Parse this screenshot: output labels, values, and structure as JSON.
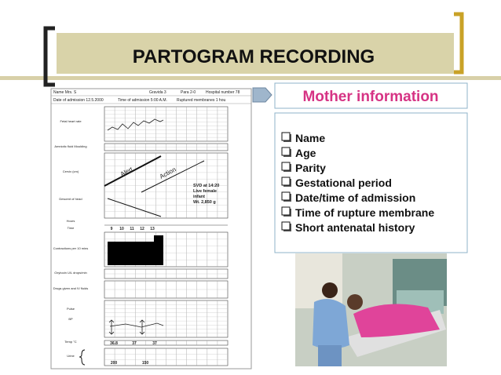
{
  "title": "PARTOGRAM RECORDING",
  "partogram": {
    "name": "Name Mrs. S",
    "gravida": "Gravida 3",
    "para": "Para 2-0",
    "hospital_number": "Hospital number 78",
    "date_of_admission": "Date of admission 12.5.2000",
    "time_of_admission": "Time of admission 5:00 A.M.",
    "ruptured_membranes": "Ruptured membranes 1 hou",
    "alert": "Alert",
    "action": "Action",
    "delivery_note": [
      "SVD at 14:20",
      "Live female",
      "infant",
      "Wt. 2,850 g"
    ],
    "row_labels": [
      "Fetal heart rate",
      "Amniotic fluid Moulding",
      "Cervix (cm)",
      "Descent of head",
      "Hours",
      "Time",
      "Contractions per 10 mins",
      "Oxytocin U/L drops/min",
      "Drugs given and IV fluids",
      "Pulse",
      "BP",
      "Temp °C",
      "Urine"
    ],
    "times": [
      "9",
      "10",
      "11",
      "12",
      "13"
    ],
    "temps": [
      "36.8",
      "37",
      "37"
    ],
    "urine_volumes": [
      "200",
      "150"
    ]
  },
  "mother_info": {
    "heading": "Mother information",
    "items": [
      "Name",
      "Age",
      "Parity",
      "Gestational period",
      "Date/time of admission",
      "Time of rupture membrane",
      "Short  antenatal history"
    ]
  }
}
